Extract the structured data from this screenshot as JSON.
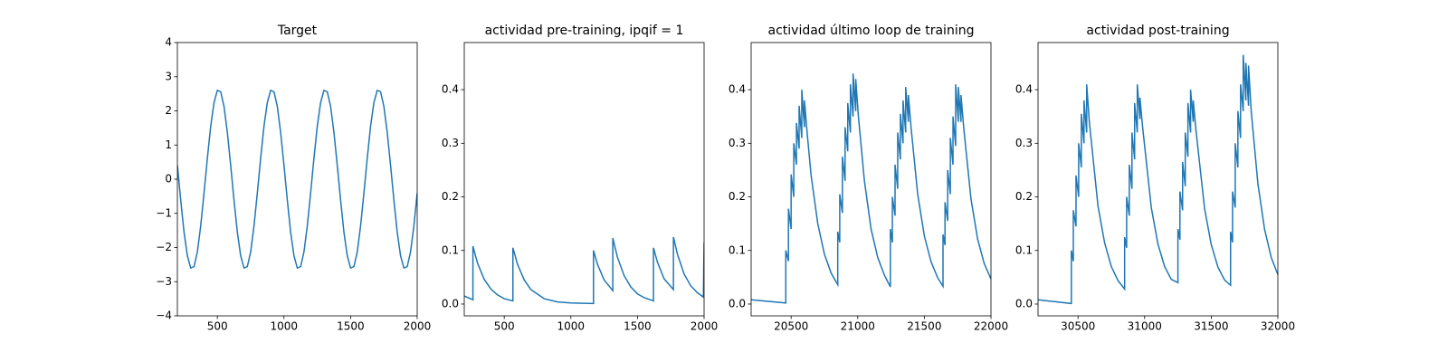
{
  "chart_data": [
    {
      "type": "line",
      "title": "Target",
      "color": "#1f77b4",
      "x": [
        200,
        225,
        250,
        275,
        300,
        325,
        350,
        375,
        400,
        425,
        450,
        475,
        500,
        525,
        550,
        575,
        600,
        625,
        650,
        675,
        700,
        725,
        750,
        775,
        800,
        825,
        850,
        875,
        900,
        925,
        950,
        975,
        1000,
        1025,
        1050,
        1075,
        1100,
        1125,
        1150,
        1175,
        1200,
        1225,
        1250,
        1275,
        1300,
        1325,
        1350,
        1375,
        1400,
        1425,
        1450,
        1475,
        1500,
        1525,
        1550,
        1575,
        1600,
        1625,
        1650,
        1675,
        1700,
        1725,
        1750,
        1775,
        1800,
        1825,
        1850,
        1875,
        1900,
        1925,
        1950,
        1975,
        2000
      ],
      "values": [
        0.41,
        -0.61,
        -1.55,
        -2.24,
        -2.6,
        -2.56,
        -2.13,
        -1.37,
        -0.41,
        0.61,
        1.55,
        2.24,
        2.6,
        2.56,
        2.13,
        1.37,
        0.41,
        -0.61,
        -1.55,
        -2.24,
        -2.6,
        -2.56,
        -2.13,
        -1.37,
        -0.41,
        0.61,
        1.55,
        2.24,
        2.6,
        2.56,
        2.13,
        1.37,
        0.41,
        -0.61,
        -1.55,
        -2.24,
        -2.6,
        -2.56,
        -2.13,
        -1.37,
        -0.41,
        0.61,
        1.55,
        2.24,
        2.6,
        2.56,
        2.13,
        1.37,
        0.41,
        -0.61,
        -1.55,
        -2.24,
        -2.6,
        -2.56,
        -2.13,
        -1.37,
        -0.41,
        0.61,
        1.55,
        2.24,
        2.6,
        2.56,
        2.13,
        1.37,
        0.41,
        -0.61,
        -1.55,
        -2.24,
        -2.6,
        -2.56,
        -2.13,
        -1.37,
        -0.41
      ],
      "xlim": [
        200,
        2000
      ],
      "xticks": [
        500,
        1000,
        1500,
        2000
      ],
      "ylim": [
        -4,
        4
      ],
      "yticks": [
        {
          "value": -4,
          "label": "−4"
        },
        {
          "value": -3,
          "label": "−3"
        },
        {
          "value": -2,
          "label": "−2"
        },
        {
          "value": -1,
          "label": "−1"
        },
        0,
        1,
        2,
        3,
        4
      ]
    },
    {
      "type": "line",
      "title": "actividad pre-training, ipqif = 1",
      "color": "#1f77b4",
      "x": [
        200,
        265,
        265,
        300,
        350,
        400,
        450,
        500,
        565,
        565,
        600,
        650,
        700,
        800,
        900,
        1000,
        1170,
        1170,
        1200,
        1250,
        1315,
        1315,
        1350,
        1400,
        1450,
        1500,
        1550,
        1620,
        1620,
        1650,
        1700,
        1770,
        1770,
        1800,
        1850,
        1900,
        1950,
        1995,
        2000
      ],
      "values": [
        0.015,
        0.008,
        0.108,
        0.076,
        0.046,
        0.028,
        0.017,
        0.01,
        0.006,
        0.105,
        0.074,
        0.045,
        0.027,
        0.01,
        0.004,
        0.002,
        0.001,
        0.1,
        0.074,
        0.045,
        0.025,
        0.123,
        0.087,
        0.053,
        0.032,
        0.019,
        0.012,
        0.006,
        0.105,
        0.078,
        0.047,
        0.027,
        0.125,
        0.093,
        0.056,
        0.034,
        0.021,
        0.013,
        0.115
      ],
      "xlim": [
        200,
        2000
      ],
      "xticks": [
        500,
        1000,
        1500,
        2000
      ],
      "ylim": [
        -0.022,
        0.488
      ],
      "yticks": [
        {
          "value": 0,
          "label": "0.0"
        },
        0.1,
        0.2,
        0.3,
        0.4
      ]
    },
    {
      "type": "line",
      "title": "actividad último loop de training",
      "color": "#1f77b4",
      "x": [
        20200,
        20460,
        20460,
        20480,
        20480,
        20500,
        20500,
        20520,
        20520,
        20540,
        20540,
        20560,
        20560,
        20580,
        20580,
        20600,
        20600,
        20620,
        20650,
        20700,
        20750,
        20800,
        20850,
        20850,
        20865,
        20865,
        20885,
        20885,
        20905,
        20905,
        20925,
        20925,
        20945,
        20945,
        20965,
        20965,
        20985,
        20985,
        21005,
        21050,
        21100,
        21150,
        21200,
        21245,
        21245,
        21260,
        21260,
        21280,
        21280,
        21300,
        21300,
        21320,
        21320,
        21340,
        21340,
        21360,
        21360,
        21380,
        21380,
        21400,
        21450,
        21500,
        21550,
        21600,
        21640,
        21640,
        21655,
        21655,
        21675,
        21675,
        21695,
        21695,
        21715,
        21715,
        21735,
        21735,
        21755,
        21755,
        21775,
        21775,
        21795,
        21850,
        21900,
        21950,
        22000
      ],
      "values": [
        0.008,
        0.002,
        0.1,
        0.08,
        0.178,
        0.14,
        0.242,
        0.2,
        0.3,
        0.26,
        0.338,
        0.29,
        0.37,
        0.31,
        0.4,
        0.33,
        0.38,
        0.32,
        0.24,
        0.15,
        0.093,
        0.058,
        0.036,
        0.135,
        0.115,
        0.205,
        0.17,
        0.275,
        0.23,
        0.33,
        0.285,
        0.375,
        0.32,
        0.41,
        0.35,
        0.43,
        0.36,
        0.42,
        0.35,
        0.23,
        0.14,
        0.087,
        0.054,
        0.032,
        0.14,
        0.115,
        0.2,
        0.165,
        0.26,
        0.215,
        0.32,
        0.27,
        0.355,
        0.3,
        0.38,
        0.32,
        0.405,
        0.34,
        0.39,
        0.33,
        0.205,
        0.127,
        0.079,
        0.049,
        0.033,
        0.13,
        0.11,
        0.19,
        0.155,
        0.25,
        0.205,
        0.31,
        0.26,
        0.35,
        0.295,
        0.41,
        0.34,
        0.405,
        0.34,
        0.39,
        0.33,
        0.196,
        0.121,
        0.075,
        0.047
      ],
      "xlim": [
        20200,
        22000
      ],
      "xticks": [
        20500,
        21000,
        21500,
        22000
      ],
      "ylim": [
        -0.022,
        0.488
      ],
      "yticks": [
        {
          "value": 0,
          "label": "0.0"
        },
        0.1,
        0.2,
        0.3,
        0.4
      ]
    },
    {
      "type": "line",
      "title": "actividad post-training",
      "color": "#1f77b4",
      "x": [
        30200,
        30450,
        30450,
        30465,
        30465,
        30485,
        30485,
        30505,
        30505,
        30525,
        30525,
        30545,
        30545,
        30565,
        30565,
        30585,
        30650,
        30700,
        30750,
        30800,
        30850,
        30850,
        30865,
        30865,
        30885,
        30885,
        30905,
        30905,
        30925,
        30925,
        30945,
        30945,
        30965,
        30965,
        30985,
        31050,
        31100,
        31150,
        31200,
        31250,
        31250,
        31265,
        31265,
        31285,
        31285,
        31305,
        31305,
        31325,
        31325,
        31345,
        31345,
        31365,
        31365,
        31385,
        31450,
        31500,
        31550,
        31600,
        31645,
        31645,
        31660,
        31660,
        31680,
        31680,
        31700,
        31700,
        31720,
        31720,
        31740,
        31740,
        31760,
        31760,
        31780,
        31780,
        31800,
        31850,
        31900,
        31950,
        32000
      ],
      "values": [
        0.008,
        0.001,
        0.1,
        0.08,
        0.175,
        0.145,
        0.24,
        0.2,
        0.3,
        0.255,
        0.355,
        0.3,
        0.38,
        0.32,
        0.41,
        0.34,
        0.183,
        0.114,
        0.07,
        0.044,
        0.028,
        0.125,
        0.105,
        0.2,
        0.165,
        0.26,
        0.215,
        0.32,
        0.27,
        0.375,
        0.32,
        0.41,
        0.345,
        0.385,
        0.33,
        0.18,
        0.112,
        0.07,
        0.046,
        0.04,
        0.14,
        0.12,
        0.21,
        0.175,
        0.265,
        0.22,
        0.32,
        0.275,
        0.375,
        0.32,
        0.4,
        0.34,
        0.38,
        0.325,
        0.178,
        0.111,
        0.069,
        0.045,
        0.035,
        0.135,
        0.115,
        0.21,
        0.18,
        0.3,
        0.255,
        0.36,
        0.31,
        0.41,
        0.36,
        0.465,
        0.38,
        0.45,
        0.37,
        0.445,
        0.36,
        0.225,
        0.14,
        0.087,
        0.055
      ],
      "xlim": [
        30200,
        32000
      ],
      "xticks": [
        30500,
        31000,
        31500,
        32000
      ],
      "ylim": [
        -0.022,
        0.488
      ],
      "yticks": [
        {
          "value": 0,
          "label": "0.0"
        },
        0.1,
        0.2,
        0.3,
        0.4
      ]
    }
  ]
}
